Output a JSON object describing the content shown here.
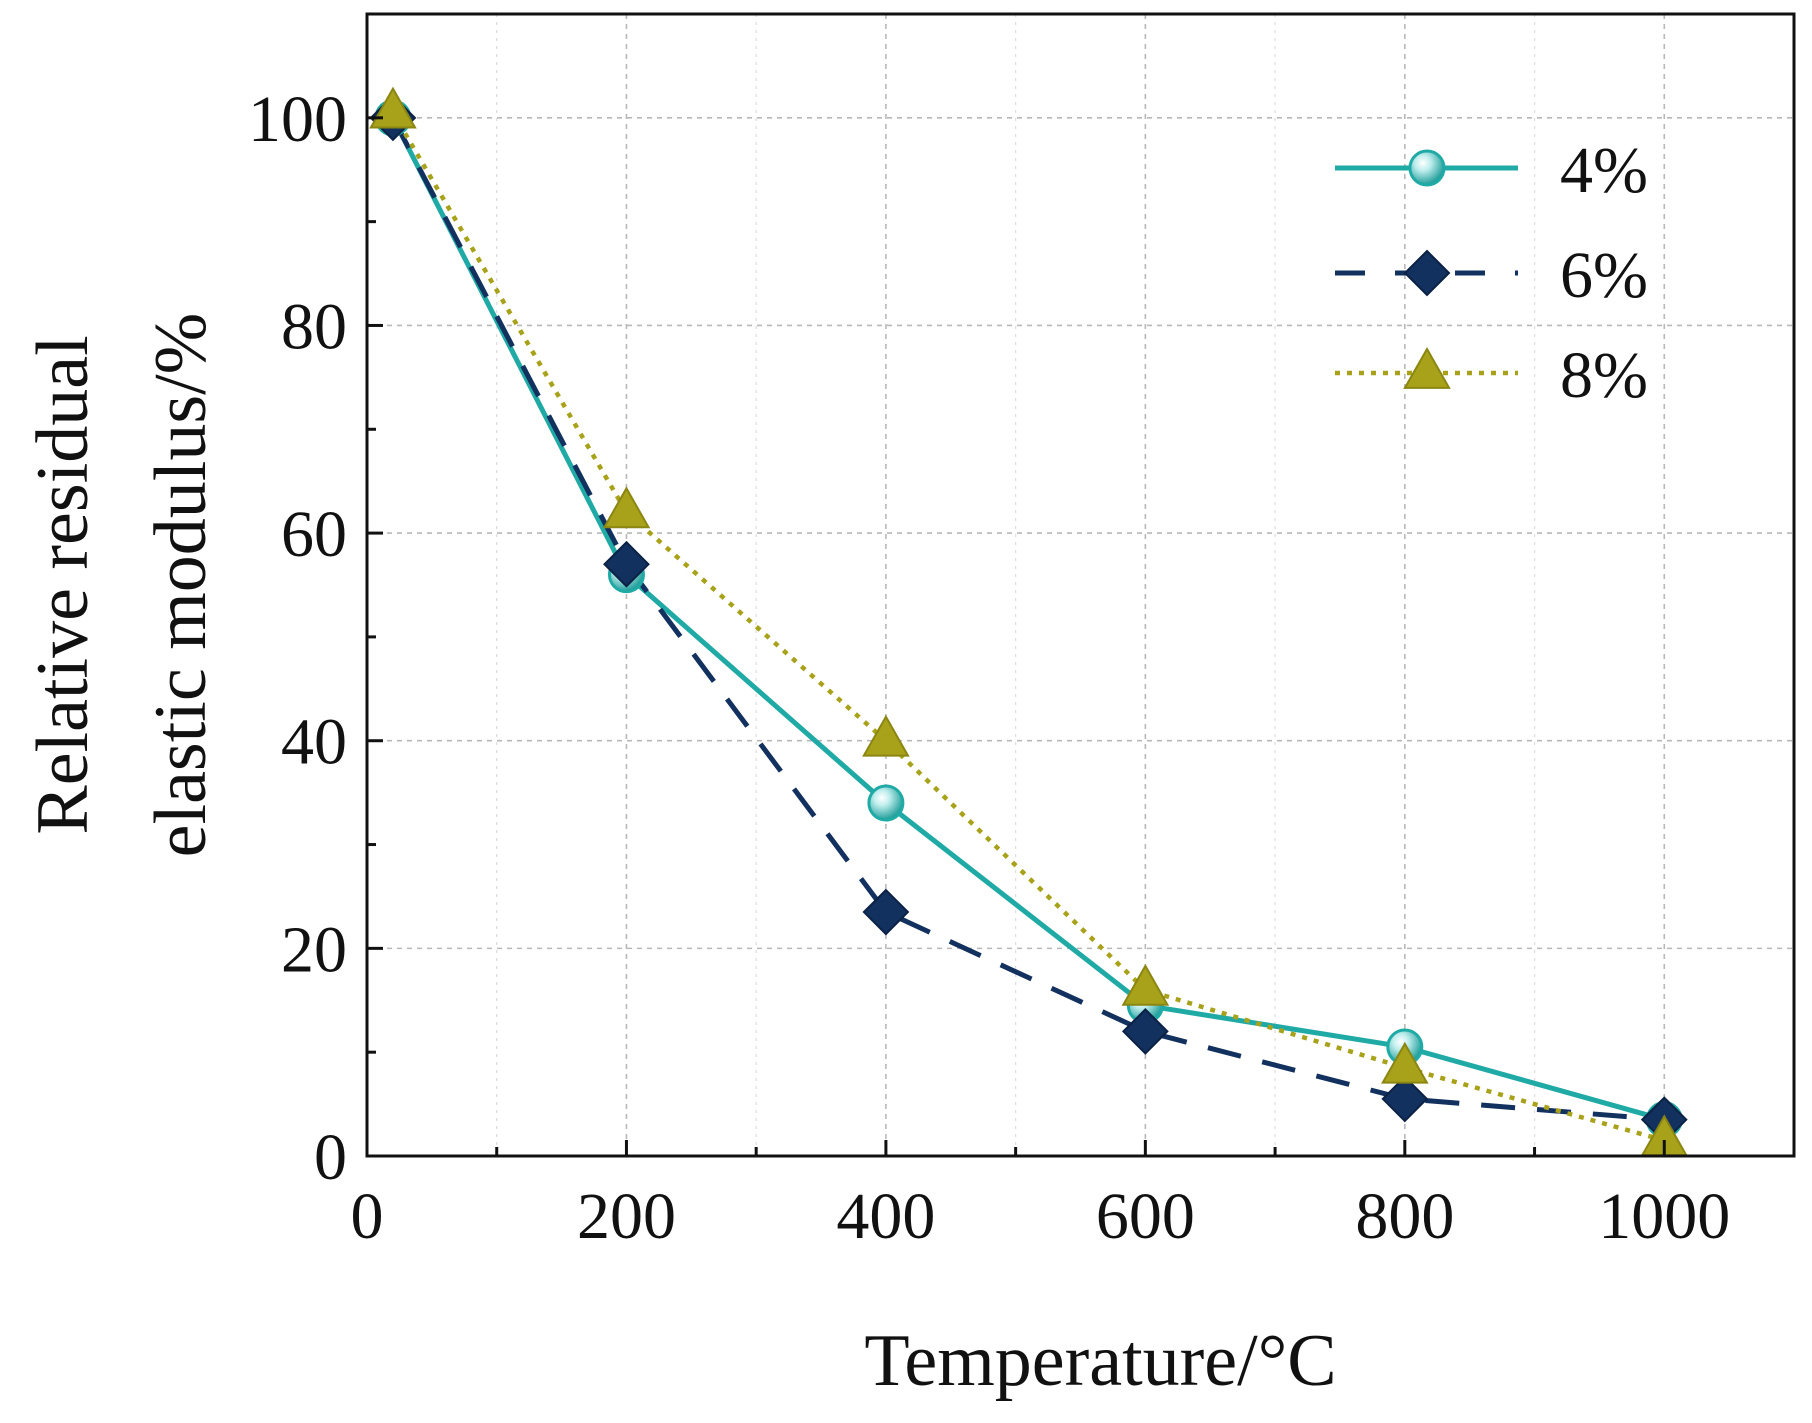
{
  "chart_data": {
    "type": "line",
    "xlabel": "Temperature/°C",
    "ylabel_lines": [
      "Relative residual",
      "elastic modulus/%"
    ],
    "xlim": [
      0,
      1100
    ],
    "ylim": [
      0,
      110
    ],
    "x_ticks": [
      0,
      200,
      400,
      600,
      800,
      1000
    ],
    "y_ticks": [
      0,
      20,
      40,
      60,
      80,
      100
    ],
    "x_tick_labels": [
      "0",
      "200",
      "400",
      "600",
      "800",
      "1000"
    ],
    "y_tick_labels": [
      "0",
      "20",
      "40",
      "60",
      "80",
      "100"
    ],
    "grid": true,
    "legend_position": "top-right",
    "x": [
      20,
      200,
      400,
      600,
      800,
      1000
    ],
    "series": [
      {
        "name": "4%",
        "values": [
          100,
          56,
          34,
          14.5,
          10.5,
          3.5
        ],
        "color": "#20aaa6",
        "line_style": "solid",
        "marker": "circle"
      },
      {
        "name": "6%",
        "values": [
          100,
          57,
          23.5,
          12,
          5.5,
          3.5
        ],
        "color": "#12315f",
        "line_style": "dashed",
        "marker": "diamond"
      },
      {
        "name": "8%",
        "values": [
          100.5,
          62,
          40,
          16,
          8.5,
          1.5
        ],
        "color": "#a8a21a",
        "line_style": "dotted",
        "marker": "triangle"
      }
    ]
  }
}
